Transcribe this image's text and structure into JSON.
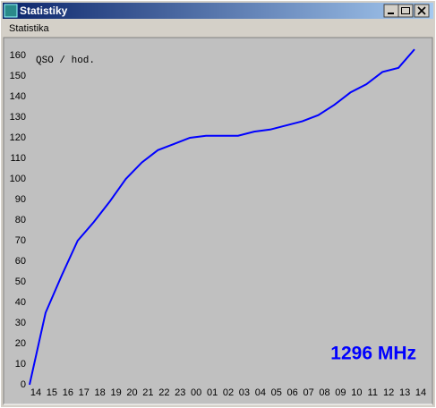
{
  "window": {
    "title": "Statistiky",
    "menu": [
      "Statistika"
    ]
  },
  "chart_data": {
    "type": "line",
    "y_label": "QSO / hod.",
    "annotation": "1296 MHz",
    "categories": [
      "14",
      "15",
      "16",
      "17",
      "18",
      "19",
      "20",
      "21",
      "22",
      "23",
      "00",
      "01",
      "02",
      "03",
      "04",
      "05",
      "06",
      "07",
      "08",
      "09",
      "10",
      "11",
      "12",
      "13",
      "14"
    ],
    "series": [
      {
        "color": "#0000ff",
        "values": [
          0,
          35,
          53,
          70,
          79,
          89,
          100,
          108,
          114,
          117,
          120,
          121,
          121,
          121,
          123,
          124,
          126,
          128,
          131,
          136,
          142,
          146,
          152,
          154,
          163
        ]
      }
    ],
    "ylim": [
      0,
      165
    ],
    "yticks": [
      0,
      10,
      20,
      30,
      40,
      50,
      60,
      70,
      80,
      90,
      100,
      110,
      120,
      130,
      140,
      150,
      160
    ]
  }
}
